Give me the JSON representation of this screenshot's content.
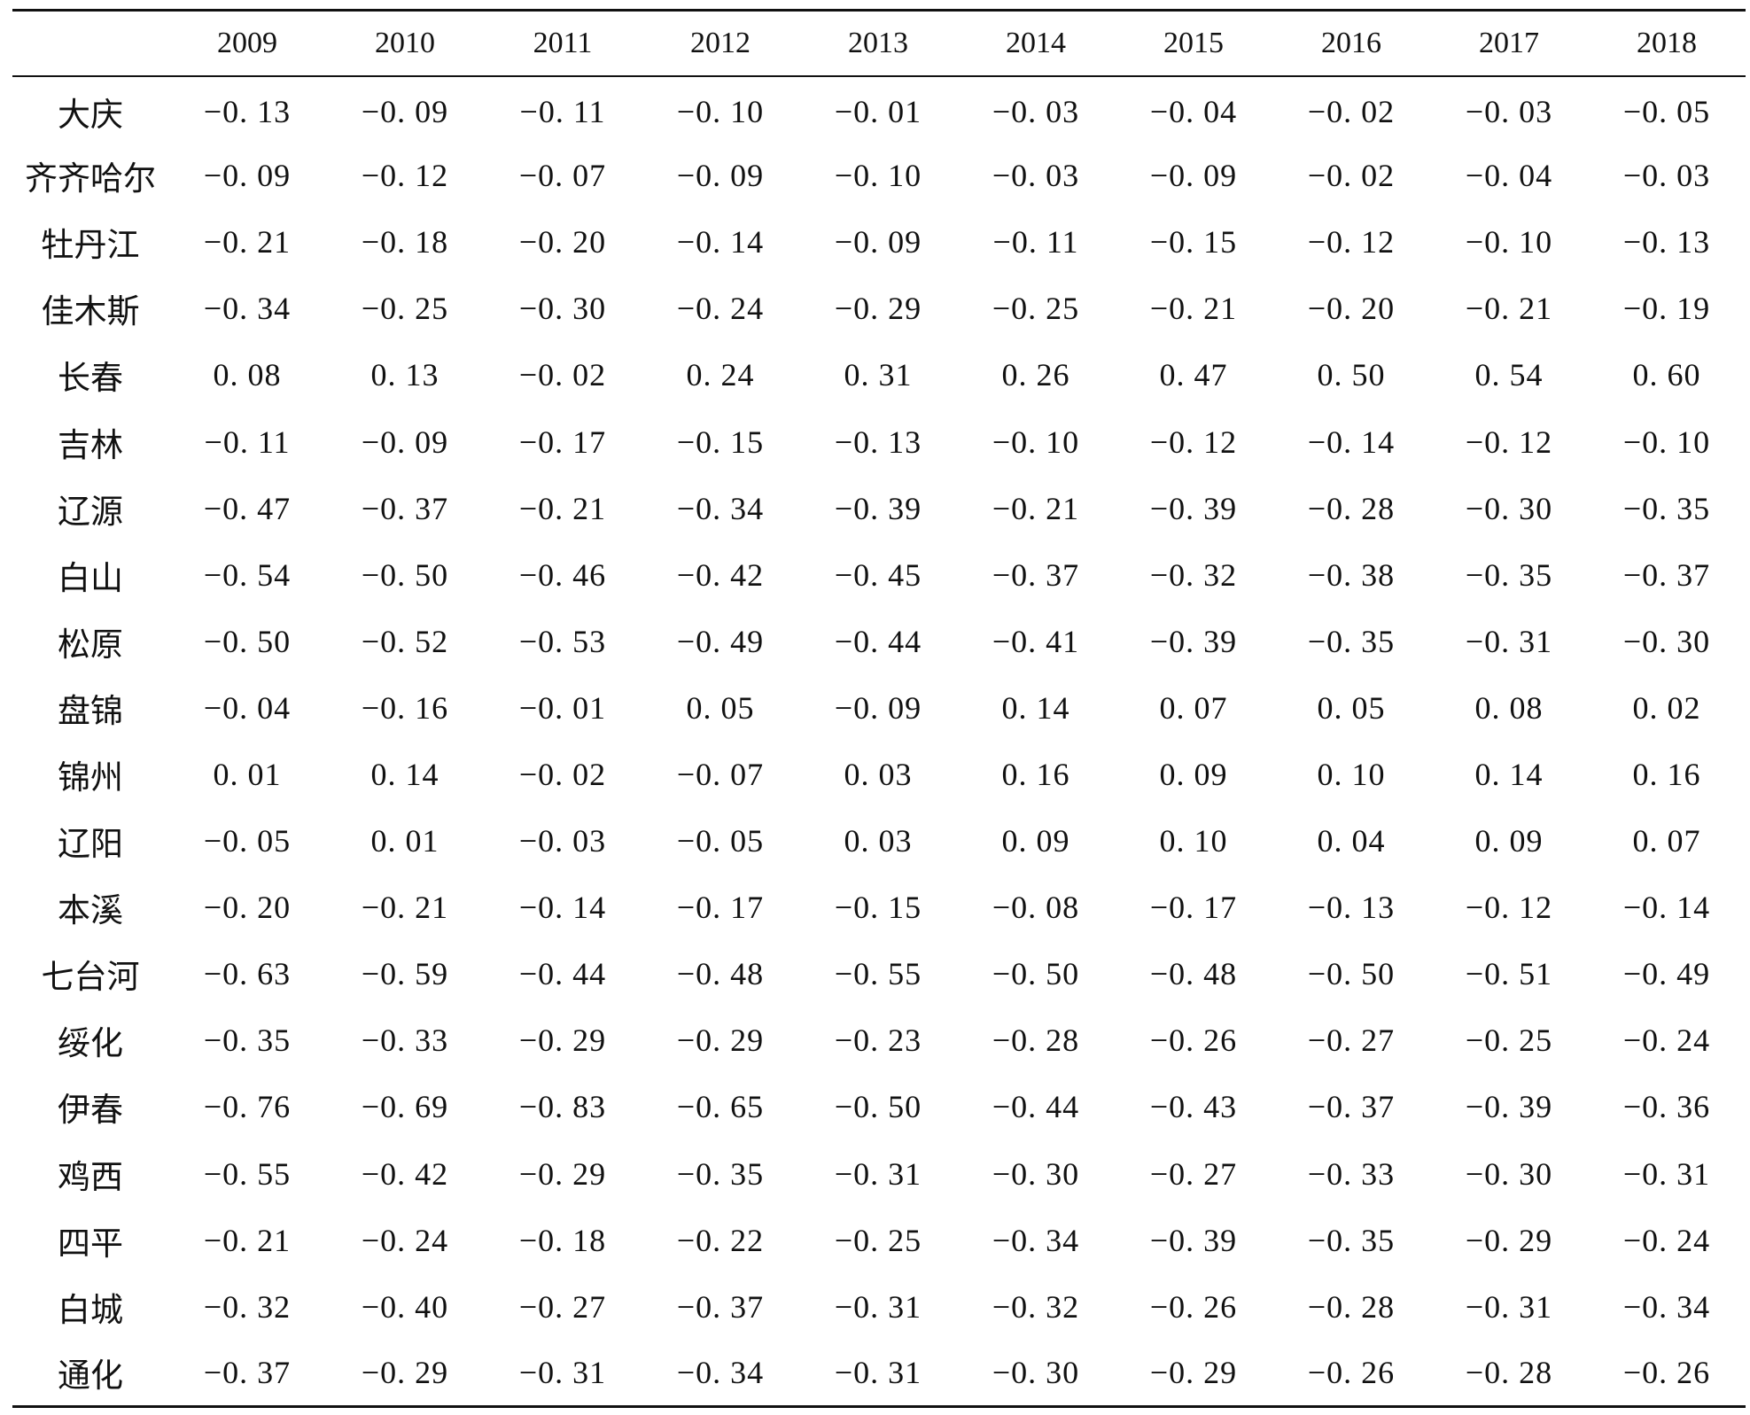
{
  "table": {
    "corner": "",
    "years": [
      "2009",
      "2010",
      "2011",
      "2012",
      "2013",
      "2014",
      "2015",
      "2016",
      "2017",
      "2018"
    ],
    "rows": [
      {
        "city": "大庆",
        "values": [
          "−0. 13",
          "−0. 09",
          "−0. 11",
          "−0. 10",
          "−0. 01",
          "−0. 03",
          "−0. 04",
          "−0. 02",
          "−0. 03",
          "−0. 05"
        ]
      },
      {
        "city": "齐齐哈尔",
        "values": [
          "−0. 09",
          "−0. 12",
          "−0. 07",
          "−0. 09",
          "−0. 10",
          "−0. 03",
          "−0. 09",
          "−0. 02",
          "−0. 04",
          "−0. 03"
        ]
      },
      {
        "city": "牡丹江",
        "values": [
          "−0. 21",
          "−0. 18",
          "−0. 20",
          "−0. 14",
          "−0. 09",
          "−0. 11",
          "−0. 15",
          "−0. 12",
          "−0. 10",
          "−0. 13"
        ]
      },
      {
        "city": "佳木斯",
        "values": [
          "−0. 34",
          "−0. 25",
          "−0. 30",
          "−0. 24",
          "−0. 29",
          "−0. 25",
          "−0. 21",
          "−0. 20",
          "−0. 21",
          "−0. 19"
        ]
      },
      {
        "city": "长春",
        "values": [
          "0. 08",
          "0. 13",
          "−0. 02",
          "0. 24",
          "0. 31",
          "0. 26",
          "0. 47",
          "0. 50",
          "0. 54",
          "0. 60"
        ]
      },
      {
        "city": "吉林",
        "values": [
          "−0. 11",
          "−0. 09",
          "−0. 17",
          "−0. 15",
          "−0. 13",
          "−0. 10",
          "−0. 12",
          "−0. 14",
          "−0. 12",
          "−0. 10"
        ]
      },
      {
        "city": "辽源",
        "values": [
          "−0. 47",
          "−0. 37",
          "−0. 21",
          "−0. 34",
          "−0. 39",
          "−0. 21",
          "−0. 39",
          "−0. 28",
          "−0. 30",
          "−0. 35"
        ]
      },
      {
        "city": "白山",
        "values": [
          "−0. 54",
          "−0. 50",
          "−0. 46",
          "−0. 42",
          "−0. 45",
          "−0. 37",
          "−0. 32",
          "−0. 38",
          "−0. 35",
          "−0. 37"
        ]
      },
      {
        "city": "松原",
        "values": [
          "−0. 50",
          "−0. 52",
          "−0. 53",
          "−0. 49",
          "−0. 44",
          "−0. 41",
          "−0. 39",
          "−0. 35",
          "−0. 31",
          "−0. 30"
        ]
      },
      {
        "city": "盘锦",
        "values": [
          "−0. 04",
          "−0. 16",
          "−0. 01",
          "0. 05",
          "−0. 09",
          "0. 14",
          "0. 07",
          "0. 05",
          "0. 08",
          "0. 02"
        ]
      },
      {
        "city": "锦州",
        "values": [
          "0. 01",
          "0. 14",
          "−0. 02",
          "−0. 07",
          "0. 03",
          "0. 16",
          "0. 09",
          "0. 10",
          "0. 14",
          "0. 16"
        ]
      },
      {
        "city": "辽阳",
        "values": [
          "−0. 05",
          "0. 01",
          "−0. 03",
          "−0. 05",
          "0. 03",
          "0. 09",
          "0. 10",
          "0. 04",
          "0. 09",
          "0. 07"
        ]
      },
      {
        "city": "本溪",
        "values": [
          "−0. 20",
          "−0. 21",
          "−0. 14",
          "−0. 17",
          "−0. 15",
          "−0. 08",
          "−0. 17",
          "−0. 13",
          "−0. 12",
          "−0. 14"
        ]
      },
      {
        "city": "七台河",
        "values": [
          "−0. 63",
          "−0. 59",
          "−0. 44",
          "−0. 48",
          "−0. 55",
          "−0. 50",
          "−0. 48",
          "−0. 50",
          "−0. 51",
          "−0. 49"
        ]
      },
      {
        "city": "绥化",
        "values": [
          "−0. 35",
          "−0. 33",
          "−0. 29",
          "−0. 29",
          "−0. 23",
          "−0. 28",
          "−0. 26",
          "−0. 27",
          "−0. 25",
          "−0. 24"
        ]
      },
      {
        "city": "伊春",
        "values": [
          "−0. 76",
          "−0. 69",
          "−0. 83",
          "−0. 65",
          "−0. 50",
          "−0. 44",
          "−0. 43",
          "−0. 37",
          "−0. 39",
          "−0. 36"
        ]
      },
      {
        "city": "鸡西",
        "values": [
          "−0. 55",
          "−0. 42",
          "−0. 29",
          "−0. 35",
          "−0. 31",
          "−0. 30",
          "−0. 27",
          "−0. 33",
          "−0. 30",
          "−0. 31"
        ]
      },
      {
        "city": "四平",
        "values": [
          "−0. 21",
          "−0. 24",
          "−0. 18",
          "−0. 22",
          "−0. 25",
          "−0. 34",
          "−0. 39",
          "−0. 35",
          "−0. 29",
          "−0. 24"
        ]
      },
      {
        "city": "白城",
        "values": [
          "−0. 32",
          "−0. 40",
          "−0. 27",
          "−0. 37",
          "−0. 31",
          "−0. 32",
          "−0. 26",
          "−0. 28",
          "−0. 31",
          "−0. 34"
        ]
      },
      {
        "city": "通化",
        "values": [
          "−0. 37",
          "−0. 29",
          "−0. 31",
          "−0. 34",
          "−0. 31",
          "−0. 30",
          "−0. 29",
          "−0. 26",
          "−0. 28",
          "−0. 26"
        ]
      }
    ]
  }
}
